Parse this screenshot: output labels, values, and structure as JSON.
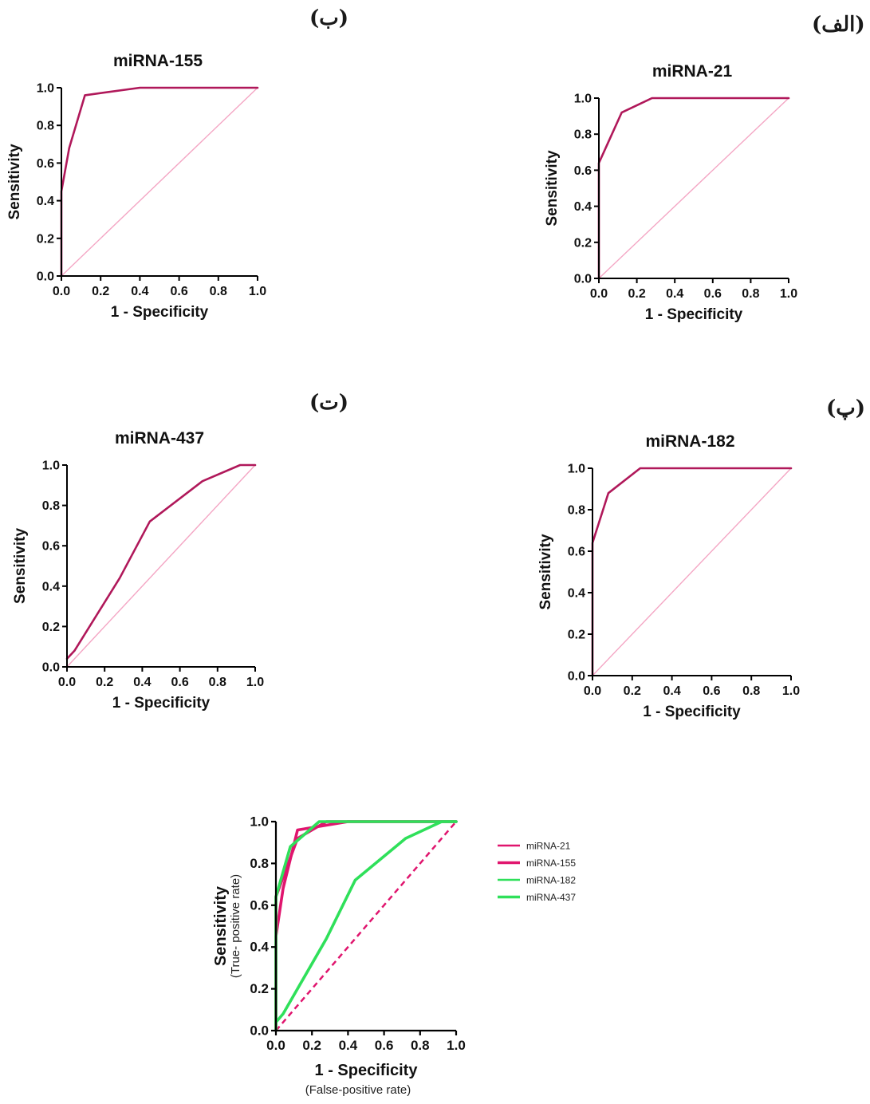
{
  "panel_tags": {
    "b": "(ب)",
    "alef": "(الف)",
    "t": "(ت)",
    "p": "(پ)"
  },
  "colors": {
    "roc": "#b0185a",
    "reference": "#f4a6c4",
    "combined_pink": "#e0156e",
    "combined_green": "#2fe05a",
    "combined_reference": "#e0156e"
  },
  "chart_data": [
    {
      "id": "mirna-155",
      "type": "line",
      "title": "miRNA-155",
      "xlabel": "1 - Specificity",
      "ylabel": "Sensitivity",
      "xlim": [
        0,
        1
      ],
      "ylim": [
        0,
        1
      ],
      "ticks": [
        "0.0",
        "0.2",
        "0.4",
        "0.6",
        "0.8",
        "1.0"
      ],
      "series": [
        {
          "x": [
            0,
            0,
            0.04,
            0.12,
            0.4,
            1.0
          ],
          "y": [
            0,
            0.45,
            0.68,
            0.96,
            1.0,
            1.0
          ]
        }
      ],
      "reference_line": true
    },
    {
      "id": "mirna-21",
      "type": "line",
      "title": "miRNA-21",
      "xlabel": "1 - Specificity",
      "ylabel": "Sensitivity",
      "xlim": [
        0,
        1
      ],
      "ylim": [
        0,
        1
      ],
      "ticks": [
        "0.0",
        "0.2",
        "0.4",
        "0.6",
        "0.8",
        "1.0"
      ],
      "series": [
        {
          "x": [
            0,
            0,
            0.12,
            0.28,
            1.0
          ],
          "y": [
            0,
            0.64,
            0.92,
            1.0,
            1.0
          ]
        }
      ],
      "reference_line": true
    },
    {
      "id": "mirna-437",
      "type": "line",
      "title": "miRNA-437",
      "xlabel": "1 - Specificity",
      "ylabel": "Sensitivity",
      "xlim": [
        0,
        1
      ],
      "ylim": [
        0,
        1
      ],
      "ticks": [
        "0.0",
        "0.2",
        "0.4",
        "0.6",
        "0.8",
        "1.0"
      ],
      "series": [
        {
          "x": [
            0,
            0.04,
            0.28,
            0.44,
            0.72,
            0.92,
            1.0
          ],
          "y": [
            0.04,
            0.08,
            0.44,
            0.72,
            0.92,
            1.0,
            1.0
          ]
        }
      ],
      "reference_line": true
    },
    {
      "id": "mirna-182",
      "type": "line",
      "title": "miRNA-182",
      "xlabel": "1 - Specificity",
      "ylabel": "Sensitivity",
      "xlim": [
        0,
        1
      ],
      "ylim": [
        0,
        1
      ],
      "ticks": [
        "0.0",
        "0.2",
        "0.4",
        "0.6",
        "0.8",
        "1.0"
      ],
      "series": [
        {
          "x": [
            0,
            0,
            0.08,
            0.24,
            1.0
          ],
          "y": [
            0,
            0.64,
            0.88,
            1.0,
            1.0
          ]
        }
      ],
      "reference_line": true
    },
    {
      "id": "combined",
      "type": "line",
      "title": "",
      "xlabel": "1 - Specificity",
      "xlabel_sub": "(False-positive rate)",
      "ylabel": "Sensitivity",
      "ylabel_sub": "(True- positive rate)",
      "xlim": [
        0,
        1
      ],
      "ylim": [
        0,
        1
      ],
      "ticks": [
        "0.0",
        "0.2",
        "0.4",
        "0.6",
        "0.8",
        "1.0"
      ],
      "legend": "right",
      "series": [
        {
          "name": "miRNA-21",
          "color": "#e0156e",
          "x": [
            0,
            0,
            0.12,
            0.28,
            1.0
          ],
          "y": [
            0,
            0.64,
            0.92,
            1.0,
            1.0
          ]
        },
        {
          "name": "miRNA-155",
          "color": "#e0156e",
          "x": [
            0,
            0,
            0.04,
            0.12,
            0.4,
            1.0
          ],
          "y": [
            0,
            0.45,
            0.68,
            0.96,
            1.0,
            1.0
          ]
        },
        {
          "name": "miRNA-182",
          "color": "#2fe05a",
          "x": [
            0,
            0,
            0.08,
            0.24,
            1.0
          ],
          "y": [
            0,
            0.64,
            0.88,
            1.0,
            1.0
          ]
        },
        {
          "name": "miRNA-437",
          "color": "#2fe05a",
          "x": [
            0,
            0.04,
            0.28,
            0.44,
            0.72,
            0.92,
            1.0
          ],
          "y": [
            0.04,
            0.08,
            0.44,
            0.72,
            0.92,
            1.0,
            1.0
          ]
        }
      ],
      "reference_line": true
    }
  ]
}
